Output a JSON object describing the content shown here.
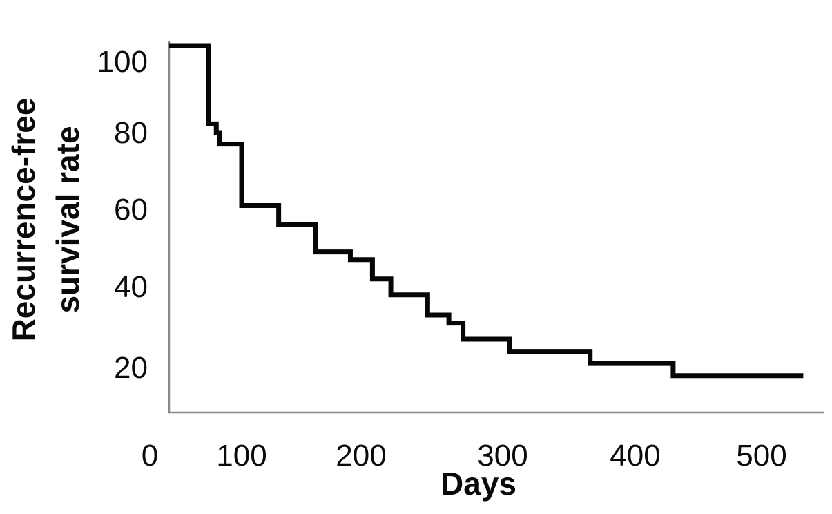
{
  "figure": {
    "kind": "kaplan-meier-step-survival-plot",
    "background_color": "#ffffff",
    "curve_color": "#060606",
    "axis_color": "#8a8a8a",
    "text_color": "#0a0a0a"
  },
  "chart_data": {
    "type": "line",
    "subtype": "step-function-survival-curve",
    "title": "",
    "xlabel": "Days",
    "ylabel_lines": [
      "Recurrence-free",
      "survival rate"
    ],
    "ylabel": "Recurrence-free survival rate",
    "x_ticks": [
      0,
      100,
      200,
      300,
      400,
      500
    ],
    "y_ticks": [
      100,
      80,
      60,
      40,
      20
    ],
    "xlim": [
      0,
      545
    ],
    "ylim": [
      10,
      104
    ],
    "grid": false,
    "legend": null,
    "series": [
      {
        "name": "Recurrence-free survival rate",
        "color": "#060606",
        "start": {
          "day": 0,
          "rate": 100
        },
        "steps": [
          {
            "day": 54,
            "rate": 82
          },
          {
            "day": 65,
            "rate": 80
          },
          {
            "day": 70,
            "rate": 77
          },
          {
            "day": 100,
            "rate": 61
          },
          {
            "day": 131,
            "rate": 56
          },
          {
            "day": 162,
            "rate": 49
          },
          {
            "day": 191,
            "rate": 47
          },
          {
            "day": 208,
            "rate": 42
          },
          {
            "day": 221,
            "rate": 38
          },
          {
            "day": 247,
            "rate": 33
          },
          {
            "day": 262,
            "rate": 31
          },
          {
            "day": 272,
            "rate": 27
          },
          {
            "day": 305,
            "rate": 24
          },
          {
            "day": 366,
            "rate": 21
          },
          {
            "day": 430,
            "rate": 18
          }
        ],
        "end_day": 533
      }
    ]
  }
}
